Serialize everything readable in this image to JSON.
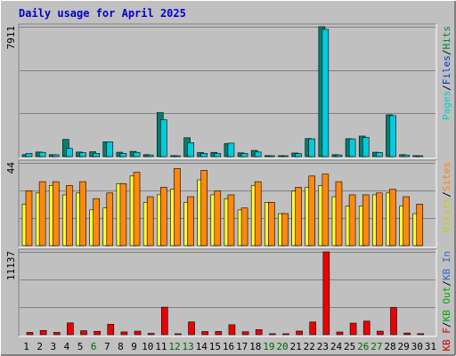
{
  "title": "Daily usage for April 2025",
  "colors": {
    "background": "#c0c0c0",
    "border_light": "#ffffff",
    "border_dark": "#808080",
    "pages": "#008080",
    "files": "#00cccc",
    "hits": "#00cccc",
    "visits": "#ffff00",
    "sites": "#ff8000",
    "kb_in": "#3399ff",
    "kb_out": "#00cc00",
    "kb_f": "#ff0000",
    "title_color": "#0000cc",
    "weekend_label": "#006600"
  },
  "chart_data": [
    {
      "type": "bar",
      "name": "hits-panel",
      "ymax_label": "7911",
      "legend": [
        {
          "text": "Pages",
          "color": "#00cccc"
        },
        {
          "text": "/",
          "color": "#000000"
        },
        {
          "text": "Files",
          "color": "#0033cc"
        },
        {
          "text": "/",
          "color": "#000000"
        },
        {
          "text": "Hits",
          "color": "#008040"
        }
      ],
      "ylim": [
        0,
        7911
      ],
      "series": [
        {
          "name": "Pages",
          "color": "#008070",
          "values": [
            120,
            280,
            120,
            1050,
            280,
            300,
            900,
            270,
            320,
            120,
            2680,
            60,
            1150,
            250,
            260,
            800,
            230,
            380,
            60,
            60,
            220,
            1100,
            7911,
            120,
            1090,
            1250,
            270,
            2550,
            120,
            60
          ]
        },
        {
          "name": "Files",
          "color": "#00ccdd",
          "values": [
            200,
            260,
            110,
            500,
            240,
            200,
            900,
            200,
            260,
            100,
            2250,
            50,
            850,
            200,
            190,
            820,
            200,
            280,
            50,
            50,
            180,
            1080,
            7750,
            100,
            1080,
            1170,
            250,
            2500,
            100,
            50
          ]
        }
      ]
    },
    {
      "type": "bar",
      "name": "visits-panel",
      "ymax_label": "44",
      "legend": [
        {
          "text": "Visits",
          "color": "#cccc00"
        },
        {
          "text": "/",
          "color": "#000000"
        },
        {
          "text": "Sites",
          "color": "#ff8000"
        }
      ],
      "ylim": [
        0,
        44
      ],
      "series": [
        {
          "name": "Visits",
          "color": "#ffff33",
          "values": [
            22,
            28,
            32,
            27,
            28,
            19,
            20,
            33,
            37,
            23,
            27,
            30,
            23,
            35,
            27,
            25,
            19,
            32,
            23,
            17,
            29,
            31,
            32,
            26,
            21,
            21,
            27,
            28,
            21,
            17
          ]
        },
        {
          "name": "Sites",
          "color": "#ff8810",
          "values": [
            29,
            34,
            34,
            32,
            34,
            25,
            28,
            33,
            39,
            26,
            31,
            41,
            26,
            40,
            29,
            27,
            20,
            34,
            23,
            17,
            31,
            37,
            38,
            34,
            27,
            27,
            28,
            30,
            26,
            22
          ]
        }
      ]
    },
    {
      "type": "bar",
      "name": "kbf-panel",
      "ymax_label": "11137",
      "legend": [
        {
          "text": "KB F",
          "color": "#cc0000"
        },
        {
          "text": "/",
          "color": "#000000"
        },
        {
          "text": "KB Out",
          "color": "#00aa00"
        },
        {
          "text": "/",
          "color": "#000000"
        },
        {
          "text": "KB In",
          "color": "#3366cc"
        }
      ],
      "ylim": [
        0,
        11137
      ],
      "series": [
        {
          "name": "KB F",
          "color": "#ee0000",
          "values": [
            300,
            560,
            300,
            1580,
            530,
            450,
            1400,
            370,
            470,
            170,
            3700,
            110,
            1710,
            420,
            430,
            1330,
            390,
            680,
            110,
            110,
            480,
            1700,
            11137,
            360,
            1550,
            1820,
            470,
            3650,
            220,
            130
          ]
        }
      ]
    }
  ],
  "x_labels": [
    "1",
    "2",
    "3",
    "4",
    "5",
    "6",
    "7",
    "8",
    "9",
    "10",
    "11",
    "12",
    "13",
    "14",
    "15",
    "16",
    "17",
    "18",
    "19",
    "20",
    "21",
    "22",
    "23",
    "24",
    "25",
    "26",
    "27",
    "28",
    "29",
    "30",
    "31"
  ],
  "weekend_days": [
    6,
    12,
    13,
    19,
    20,
    26,
    27
  ]
}
